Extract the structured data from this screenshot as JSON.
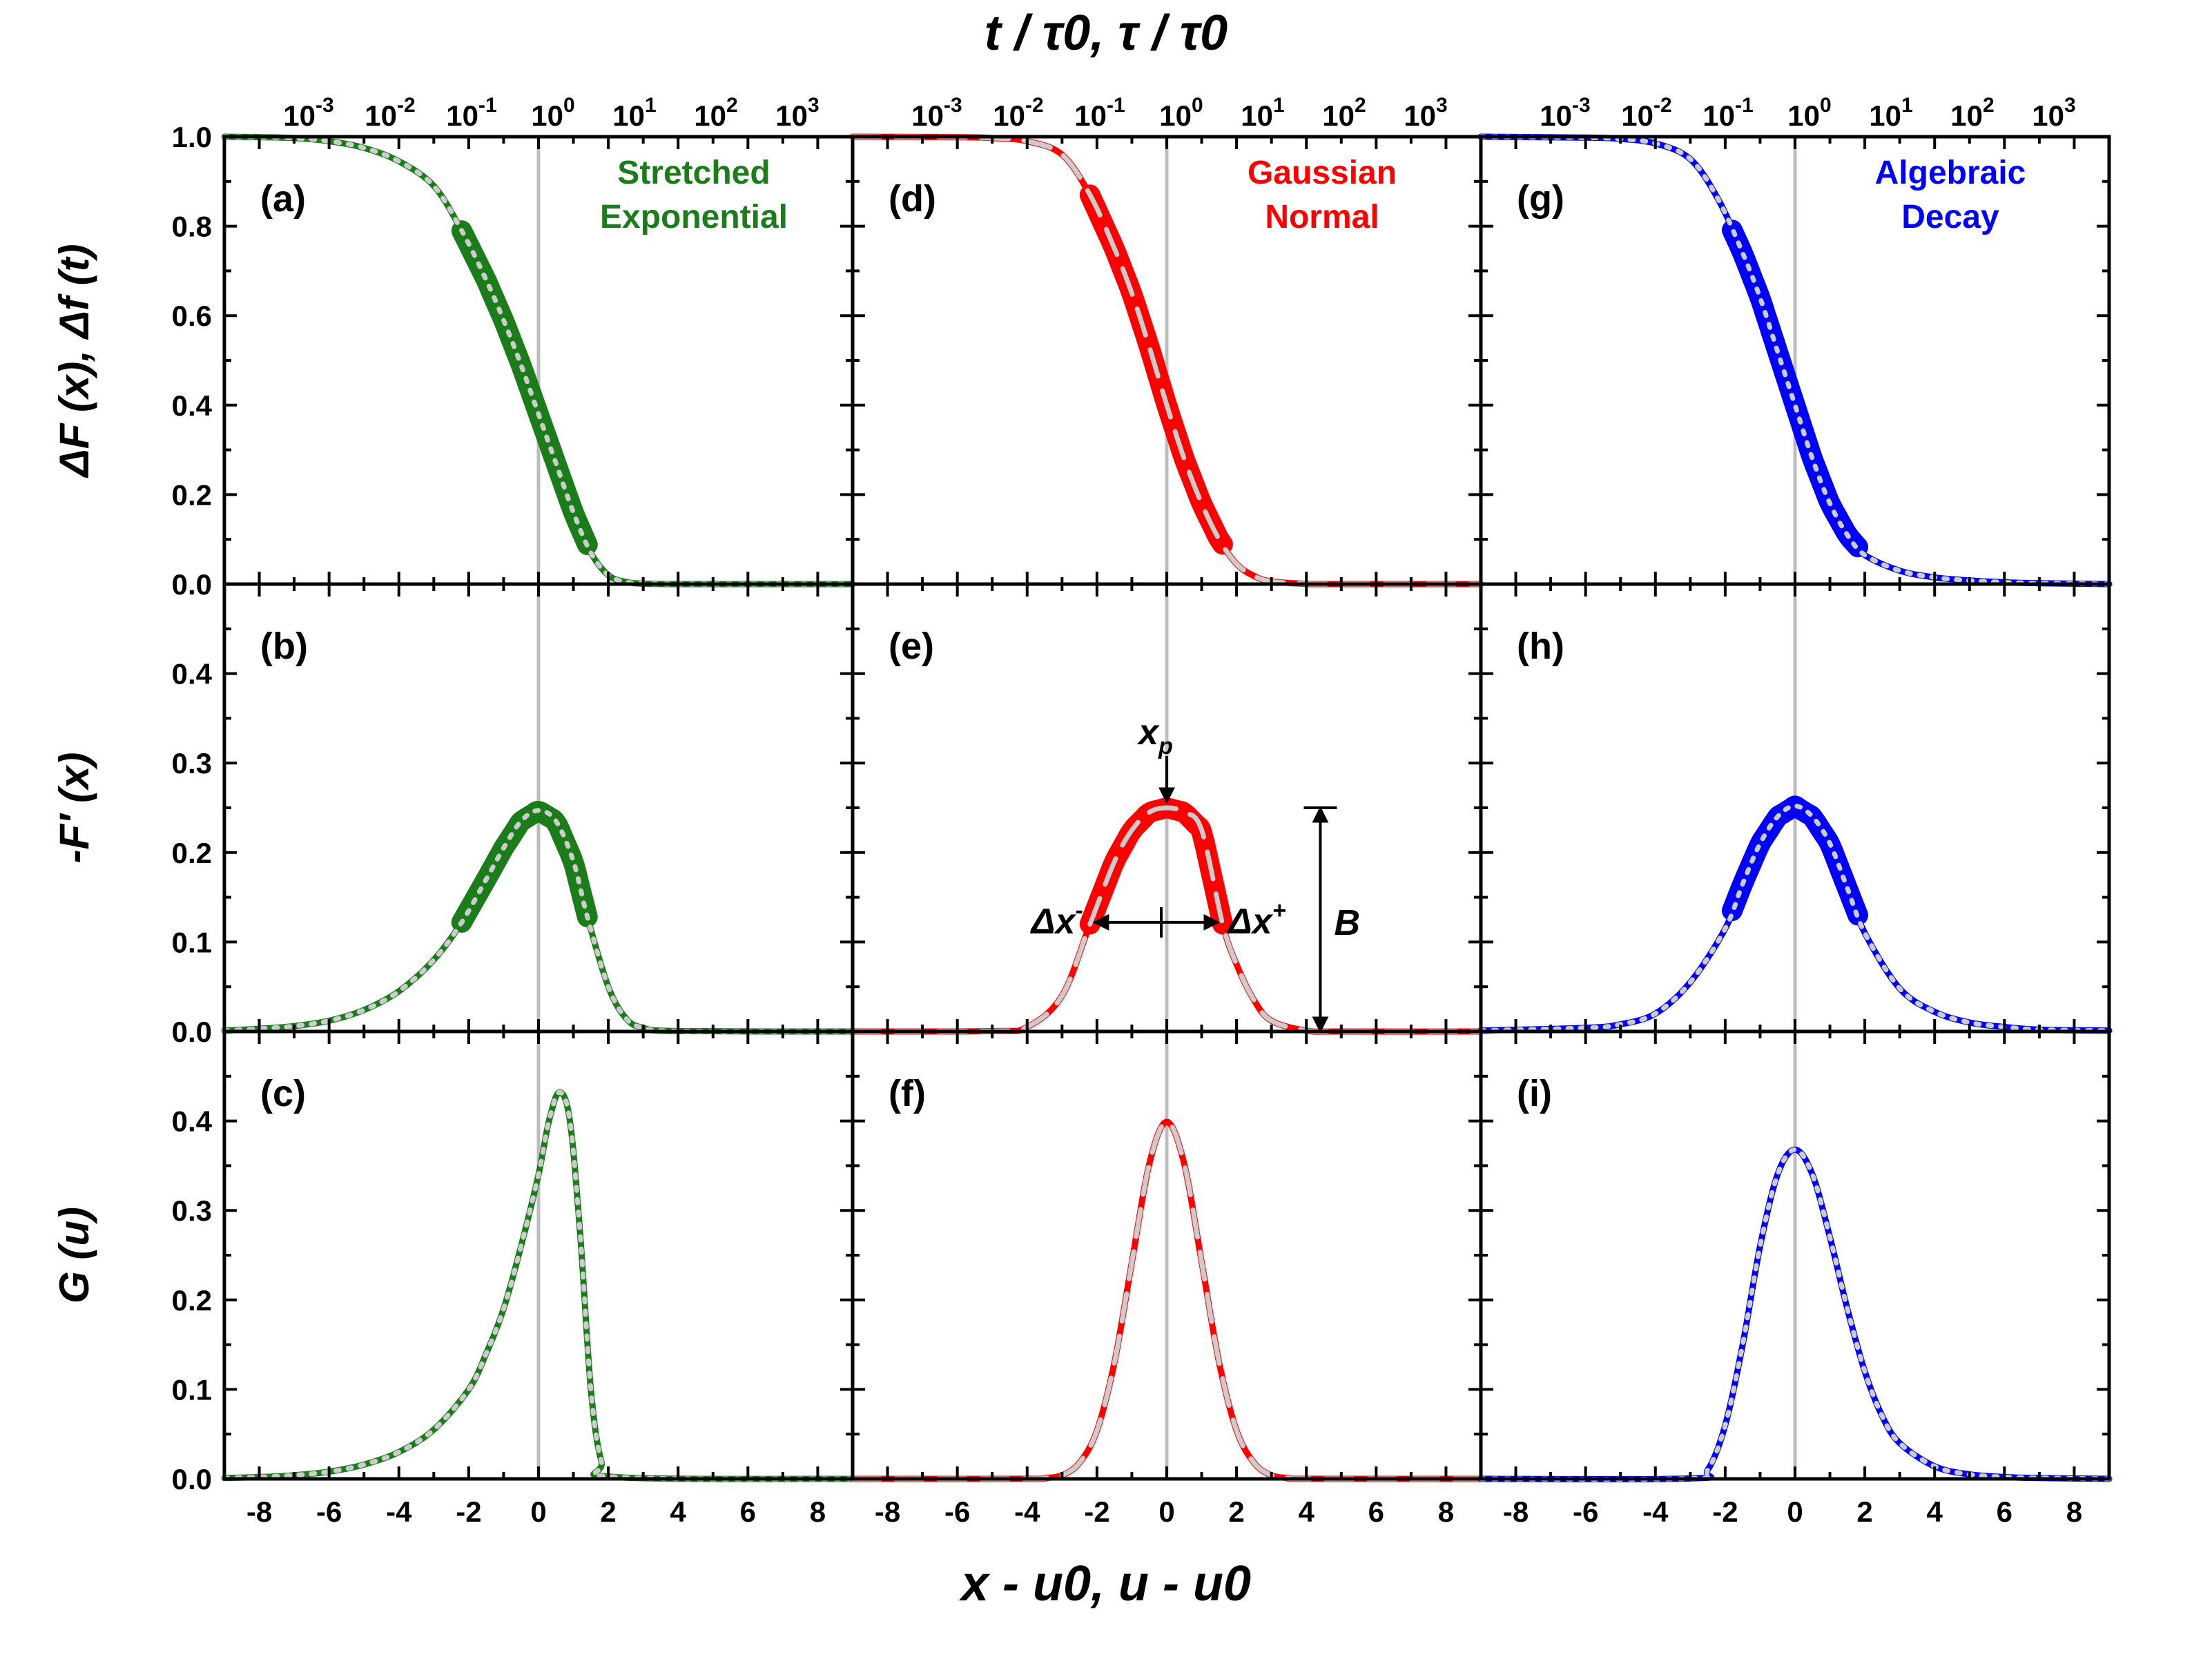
{
  "colors": {
    "stretched": "#1a7d1a",
    "gaussian": "#ff0000",
    "algebraic": "#0000ff",
    "fit": "#cccccc",
    "axis": "#000000",
    "center_line": "#bdbdbd"
  },
  "chart_data": {
    "type": "line",
    "layout": "3x3 grid of line plots, columns share a row axis",
    "top_axis_title": "t / τ0, τ / τ0",
    "bottom_axis_title": "x - u0, u - u0",
    "x_range": [
      -9,
      9
    ],
    "x_ticks": [
      "-8",
      "-6",
      "-4",
      "-2",
      "0",
      "2",
      "4",
      "6",
      "8"
    ],
    "top_ticks": [
      "10-3",
      "10-2",
      "10-1",
      "100",
      "101",
      "102",
      "103"
    ],
    "top_tick_base": "10",
    "top_tick_exponents": [
      "-3",
      "-2",
      "-1",
      "0",
      "1",
      "2",
      "3"
    ],
    "rows": [
      {
        "ylabel": "ΔF (x), Δf (t)",
        "ylim": [
          0,
          1.0
        ],
        "yticks": [
          "0.0",
          "0.2",
          "0.4",
          "0.6",
          "0.8",
          "1.0"
        ]
      },
      {
        "ylabel": "-F′ (x)",
        "ylim": [
          0,
          0.5
        ],
        "yticks": [
          "0.0",
          "0.1",
          "0.2",
          "0.3",
          "0.4"
        ]
      },
      {
        "ylabel": "G (u)",
        "ylim": [
          0,
          0.5
        ],
        "yticks": [
          "0.0",
          "0.1",
          "0.2",
          "0.3",
          "0.4"
        ]
      }
    ],
    "columns": [
      {
        "name": "Stretched Exponential",
        "type_label": [
          "Stretched",
          "Exponential"
        ],
        "color_key": "stretched",
        "fit_style": "dotted",
        "panels": [
          {
            "label": "(a)",
            "series": [
              {
                "x": [
                  -9,
                  -8,
                  -7,
                  -6,
                  -5,
                  -4,
                  -3,
                  -2.2,
                  -1.5,
                  -1,
                  -0.5,
                  0,
                  0.5,
                  1,
                  1.5,
                  2,
                  2.5,
                  3,
                  4,
                  5,
                  9
                ],
                "y": [
                  1.0,
                  0.999,
                  0.997,
                  0.99,
                  0.975,
                  0.945,
                  0.89,
                  0.79,
                  0.68,
                  0.59,
                  0.49,
                  0.38,
                  0.27,
                  0.16,
                  0.07,
                  0.02,
                  0.005,
                  0.001,
                  0,
                  0,
                  0
                ],
                "highlight_range": [
                  -2.2,
                  1.4
                ]
              }
            ]
          },
          {
            "label": "(b)",
            "series": [
              {
                "x": [
                  -9,
                  -8,
                  -7,
                  -6,
                  -5,
                  -4,
                  -3,
                  -2.2,
                  -1.5,
                  -1,
                  -0.5,
                  0,
                  0.5,
                  1,
                  1.4,
                  2,
                  2.5,
                  3,
                  4,
                  9
                ],
                "y": [
                  0.001,
                  0.003,
                  0.006,
                  0.012,
                  0.024,
                  0.045,
                  0.08,
                  0.122,
                  0.17,
                  0.205,
                  0.235,
                  0.247,
                  0.235,
                  0.19,
                  0.128,
                  0.05,
                  0.015,
                  0.004,
                  0.0005,
                  0
                ],
                "highlight_range": [
                  -2.2,
                  1.4
                ]
              }
            ]
          },
          {
            "label": "(c)",
            "series": [
              {
                "x": [
                  -9,
                  -8,
                  -7,
                  -6,
                  -5,
                  -4,
                  -3,
                  -2,
                  -1.5,
                  -1,
                  -0.5,
                  0,
                  0.3,
                  0.6,
                  0.9,
                  1.2,
                  1.5,
                  1.8,
                  2.2,
                  9
                ],
                "y": [
                  0.001,
                  0.002,
                  0.004,
                  0.008,
                  0.016,
                  0.03,
                  0.055,
                  0.1,
                  0.14,
                  0.19,
                  0.26,
                  0.34,
                  0.4,
                  0.432,
                  0.4,
                  0.27,
                  0.1,
                  0.02,
                  0.002,
                  0
                ],
                "highlight_range": null
              }
            ]
          }
        ]
      },
      {
        "name": "Gaussian Normal",
        "type_label": [
          "Gaussian",
          "Normal"
        ],
        "color_key": "gaussian",
        "fit_style": "dashed",
        "panels": [
          {
            "label": "(d)",
            "series": [
              {
                "x": [
                  -9,
                  -6,
                  -5,
                  -4,
                  -3,
                  -2.2,
                  -1.5,
                  -1,
                  -0.5,
                  0,
                  0.5,
                  1,
                  1.5,
                  2,
                  2.5,
                  3,
                  4,
                  5,
                  9
                ],
                "y": [
                  1.0,
                  0.999,
                  0.997,
                  0.99,
                  0.96,
                  0.87,
                  0.75,
                  0.65,
                  0.53,
                  0.4,
                  0.28,
                  0.18,
                  0.1,
                  0.045,
                  0.018,
                  0.006,
                  0.0005,
                  0,
                  0
                ],
                "highlight_range": [
                  -2.2,
                  1.6
                ]
              }
            ]
          },
          {
            "label": "(e)",
            "series": [
              {
                "x": [
                  -9,
                  -5,
                  -4,
                  -3,
                  -2.2,
                  -1.5,
                  -1,
                  -0.5,
                  0,
                  0.5,
                  1,
                  1.6,
                  2,
                  2.5,
                  3,
                  4,
                  5,
                  9
                ],
                "y": [
                  0,
                  0.0005,
                  0.005,
                  0.04,
                  0.12,
                  0.19,
                  0.225,
                  0.245,
                  0.25,
                  0.245,
                  0.225,
                  0.12,
                  0.075,
                  0.035,
                  0.012,
                  0.001,
                  0,
                  0
                ],
                "highlight_range": [
                  -2.2,
                  1.6
                ]
              }
            ]
          },
          {
            "label": "(f)",
            "series": [
              {
                "x": [
                  -9,
                  -4,
                  -3.5,
                  -3,
                  -2.5,
                  -2,
                  -1.5,
                  -1,
                  -0.5,
                  0,
                  0.5,
                  1,
                  1.5,
                  2,
                  2.5,
                  3,
                  3.5,
                  4,
                  9
                ],
                "y": [
                  0,
                  0.0001,
                  0.001,
                  0.004,
                  0.018,
                  0.054,
                  0.13,
                  0.242,
                  0.352,
                  0.399,
                  0.352,
                  0.242,
                  0.13,
                  0.054,
                  0.018,
                  0.004,
                  0.001,
                  0.0001,
                  0
                ],
                "highlight_range": null
              }
            ]
          }
        ]
      },
      {
        "name": "Algebraic Decay",
        "type_label": [
          "Algebraic",
          "Decay"
        ],
        "color_key": "algebraic",
        "fit_style": "dotted",
        "panels": [
          {
            "label": "(g)",
            "series": [
              {
                "x": [
                  -9,
                  -6,
                  -5,
                  -4,
                  -3,
                  -2.2,
                  -1.5,
                  -1,
                  -0.5,
                  0,
                  0.5,
                  1,
                  1.5,
                  2,
                  3,
                  4,
                  5,
                  6,
                  7,
                  9
                ],
                "y": [
                  1.0,
                  0.998,
                  0.995,
                  0.985,
                  0.95,
                  0.86,
                  0.74,
                  0.64,
                  0.52,
                  0.4,
                  0.28,
                  0.18,
                  0.11,
                  0.065,
                  0.03,
                  0.015,
                  0.008,
                  0.004,
                  0.002,
                  0
                ],
                "highlight_range": [
                  -1.8,
                  1.8
                ]
              }
            ]
          },
          {
            "label": "(h)",
            "series": [
              {
                "x": [
                  -9,
                  -6,
                  -5,
                  -4,
                  -3,
                  -2,
                  -1.5,
                  -1,
                  -0.5,
                  0,
                  0.5,
                  1,
                  1.5,
                  2,
                  3,
                  4,
                  5,
                  6,
                  7,
                  9
                ],
                "y": [
                  0.001,
                  0.004,
                  0.008,
                  0.02,
                  0.055,
                  0.115,
                  0.165,
                  0.21,
                  0.24,
                  0.252,
                  0.24,
                  0.21,
                  0.16,
                  0.11,
                  0.048,
                  0.022,
                  0.01,
                  0.005,
                  0.002,
                  0.001
                ],
                "highlight_range": [
                  -1.8,
                  1.8
                ]
              }
            ]
          },
          {
            "label": "(i)",
            "series": [
              {
                "x": [
                  -9,
                  -3,
                  -2.5,
                  -2,
                  -1.5,
                  -1,
                  -0.5,
                  0,
                  0.5,
                  1,
                  1.5,
                  2,
                  2.5,
                  3,
                  4,
                  5,
                  6,
                  7,
                  9
                ],
                "y": [
                  0,
                  0.0005,
                  0.01,
                  0.06,
                  0.15,
                  0.26,
                  0.34,
                  0.368,
                  0.34,
                  0.27,
                  0.19,
                  0.12,
                  0.07,
                  0.04,
                  0.014,
                  0.005,
                  0.002,
                  0.001,
                  0
                ],
                "highlight_range": null
              }
            ]
          }
        ]
      }
    ],
    "annotations": {
      "peak_label": "x",
      "peak_label_sub": "p",
      "left_width_label": "Δx",
      "left_width_sup": "-",
      "right_width_label": "Δx",
      "right_width_sup": "+",
      "height_label": "B",
      "peak_x": 0,
      "peak_y": 0.25,
      "half_y": 0.122,
      "left_x": -2.2,
      "right_x": 1.6,
      "height_marker_x": 4.4
    }
  }
}
